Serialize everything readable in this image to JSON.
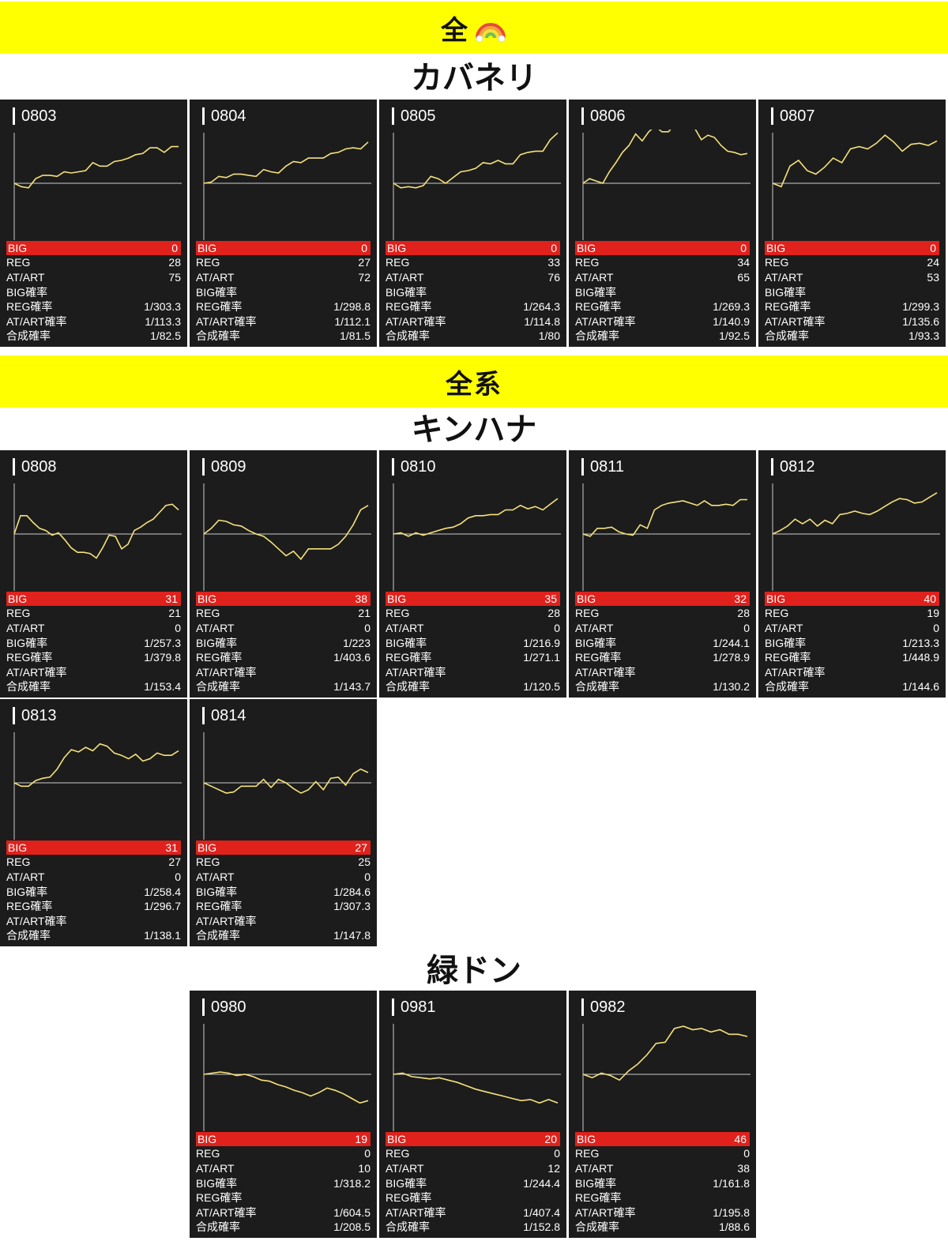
{
  "banners": [
    {
      "text": "全"
    },
    {
      "text": "全系"
    }
  ],
  "stat_labels": [
    "BIG",
    "REG",
    "AT/ART",
    "BIG確率",
    "REG確率",
    "AT/ART確率",
    "合成確率"
  ],
  "colors": {
    "banner": "#ffff00",
    "card": "#1c1c1c",
    "big_row": "#e0211c",
    "graph_line": "#f5e27a",
    "baseline": "#cccccc"
  },
  "sections": [
    {
      "title": "カバネリ",
      "machines": [
        {
          "id": "0803",
          "stats": [
            "0",
            "28",
            "75",
            "",
            "1/303.3",
            "1/113.3",
            "1/82.5"
          ],
          "graph": [
            0,
            -3,
            -4,
            4,
            7,
            7,
            6,
            10,
            9,
            10,
            11,
            18,
            15,
            15,
            19,
            20,
            22,
            25,
            26,
            31,
            31,
            27,
            32,
            32
          ]
        },
        {
          "id": "0804",
          "stats": [
            "0",
            "27",
            "72",
            "",
            "1/298.8",
            "1/112.1",
            "1/81.5"
          ],
          "graph": [
            0,
            1,
            6,
            5,
            8,
            8,
            7,
            6,
            12,
            10,
            9,
            15,
            19,
            18,
            22,
            22,
            22,
            26,
            27,
            30,
            31,
            30,
            36
          ]
        },
        {
          "id": "0805",
          "stats": [
            "0",
            "33",
            "76",
            "",
            "1/264.3",
            "1/114.8",
            "1/80"
          ],
          "graph": [
            0,
            -4,
            -3,
            -4,
            -2,
            6,
            4,
            0,
            5,
            10,
            11,
            13,
            18,
            17,
            20,
            17,
            17,
            25,
            27,
            28,
            28,
            38,
            44
          ]
        },
        {
          "id": "0806",
          "stats": [
            "0",
            "34",
            "65",
            "",
            "1/269.3",
            "1/140.9",
            "1/92.5"
          ],
          "graph": [
            0,
            4,
            2,
            0,
            10,
            18,
            27,
            33,
            43,
            37,
            45,
            50,
            45,
            45,
            52,
            50,
            54,
            48,
            38,
            42,
            40,
            33,
            28,
            27,
            25,
            26
          ]
        },
        {
          "id": "0807",
          "stats": [
            "0",
            "24",
            "53",
            "",
            "1/299.3",
            "1/135.6",
            "1/93.3"
          ],
          "graph": [
            0,
            -3,
            15,
            20,
            11,
            8,
            14,
            22,
            18,
            30,
            32,
            30,
            35,
            42,
            36,
            28,
            34,
            35,
            33,
            37
          ]
        }
      ]
    },
    {
      "title": "キンハナ",
      "machines": [
        {
          "id": "0808",
          "stats": [
            "31",
            "21",
            "0",
            "1/257.3",
            "1/379.8",
            "",
            "1/153.4"
          ],
          "graph": [
            0,
            16,
            16,
            10,
            5,
            3,
            -1,
            1,
            -5,
            -12,
            -16,
            -16,
            -17,
            -21,
            -12,
            -1,
            -2,
            -13,
            -9,
            3,
            6,
            10,
            13,
            19,
            25,
            26,
            21
          ]
        },
        {
          "id": "0809",
          "stats": [
            "38",
            "21",
            "0",
            "1/223",
            "1/403.6",
            "",
            "1/143.7"
          ],
          "graph": [
            0,
            5,
            12,
            11,
            8,
            7,
            3,
            0,
            -2,
            -7,
            -13,
            -19,
            -15,
            -22,
            -13,
            -13,
            -13,
            -13,
            -9,
            -2,
            8,
            21,
            25
          ]
        },
        {
          "id": "0810",
          "stats": [
            "35",
            "28",
            "0",
            "1/216.9",
            "1/271.1",
            "",
            "1/120.5"
          ],
          "graph": [
            0,
            1,
            -2,
            1,
            -1,
            1,
            3,
            5,
            6,
            9,
            14,
            16,
            16,
            17,
            17,
            21,
            21,
            25,
            22,
            24,
            21,
            26,
            31
          ]
        },
        {
          "id": "0811",
          "stats": [
            "32",
            "28",
            "0",
            "1/244.1",
            "1/278.9",
            "",
            "1/130.2"
          ],
          "graph": [
            0,
            -2,
            5,
            5,
            6,
            2,
            0,
            -1,
            8,
            5,
            21,
            25,
            27,
            28,
            29,
            27,
            25,
            29,
            25,
            25,
            26,
            25,
            30,
            30
          ]
        },
        {
          "id": "0812",
          "stats": [
            "40",
            "19",
            "0",
            "1/213.3",
            "1/448.9",
            "",
            "1/144.6"
          ],
          "graph": [
            0,
            3,
            7,
            13,
            9,
            13,
            7,
            12,
            9,
            17,
            18,
            20,
            18,
            17,
            20,
            24,
            28,
            31,
            30,
            27,
            28,
            32,
            36
          ]
        }
      ]
    },
    {
      "title": "",
      "machines": [
        {
          "id": "0813",
          "stats": [
            "31",
            "27",
            "0",
            "1/258.4",
            "1/296.7",
            "",
            "1/138.1"
          ],
          "graph": [
            0,
            -3,
            -3,
            2,
            4,
            5,
            12,
            22,
            29,
            27,
            31,
            28,
            34,
            32,
            26,
            24,
            21,
            25,
            19,
            21,
            26,
            24,
            24,
            28
          ]
        },
        {
          "id": "0814",
          "stats": [
            "27",
            "25",
            "0",
            "1/284.6",
            "1/307.3",
            "",
            "1/147.8"
          ],
          "graph": [
            0,
            -3,
            -6,
            -9,
            -8,
            -3,
            -3,
            -3,
            3,
            -4,
            3,
            0,
            -5,
            -9,
            -6,
            1,
            -6,
            4,
            5,
            -2,
            8,
            12,
            9
          ]
        }
      ]
    },
    {
      "title": "緑ドン",
      "machines": [
        {
          "id": "0980",
          "stats": [
            "19",
            "0",
            "10",
            "1/318.2",
            "",
            "1/604.5",
            "1/208.5"
          ],
          "graph": [
            0,
            1,
            2,
            1,
            -1,
            0,
            -2,
            -5,
            -6,
            -9,
            -11,
            -14,
            -16,
            -19,
            -16,
            -12,
            -14,
            -17,
            -21,
            -25,
            -23
          ]
        },
        {
          "id": "0981",
          "stats": [
            "20",
            "0",
            "12",
            "1/244.4",
            "",
            "1/407.4",
            "1/152.8"
          ],
          "graph": [
            0,
            1,
            -2,
            -3,
            -4,
            -3,
            -5,
            -7,
            -10,
            -13,
            -15,
            -17,
            -19,
            -21,
            -23,
            -22,
            -25,
            -22,
            -25
          ]
        },
        {
          "id": "0982",
          "stats": [
            "46",
            "0",
            "38",
            "1/161.8",
            "",
            "1/195.8",
            "1/88.6"
          ],
          "graph": [
            0,
            -3,
            1,
            -1,
            -5,
            3,
            9,
            17,
            27,
            28,
            40,
            42,
            39,
            40,
            37,
            39,
            35,
            35,
            33
          ]
        }
      ]
    }
  ]
}
